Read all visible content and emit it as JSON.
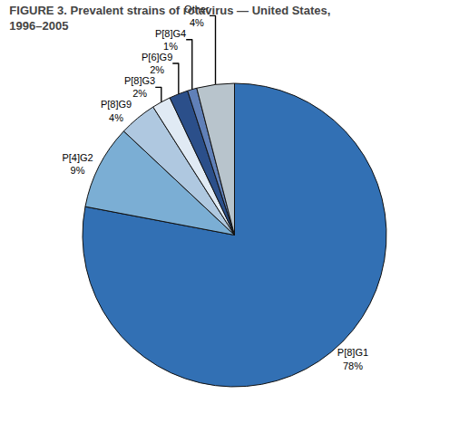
{
  "chart_data": {
    "type": "pie",
    "title": "FIGURE 3. Prevalent strains of rotavirus — United States,\n1996–2005",
    "categories": [
      "P[8]G1",
      "P[4]G2",
      "P[8]G9",
      "P[8]G3",
      "P[6]G9",
      "P[8]G4",
      "Other"
    ],
    "values": [
      78,
      9,
      4,
      2,
      2,
      1,
      4
    ],
    "value_labels": [
      "78%",
      "9%",
      "4%",
      "2%",
      "2%",
      "1%",
      "4%"
    ],
    "colors": [
      "#3270B4",
      "#7BAED4",
      "#AFC8E0",
      "#E0EAF4",
      "#2B4F8A",
      "#6080B8",
      "#B8C4CC"
    ],
    "data_labels": true
  }
}
